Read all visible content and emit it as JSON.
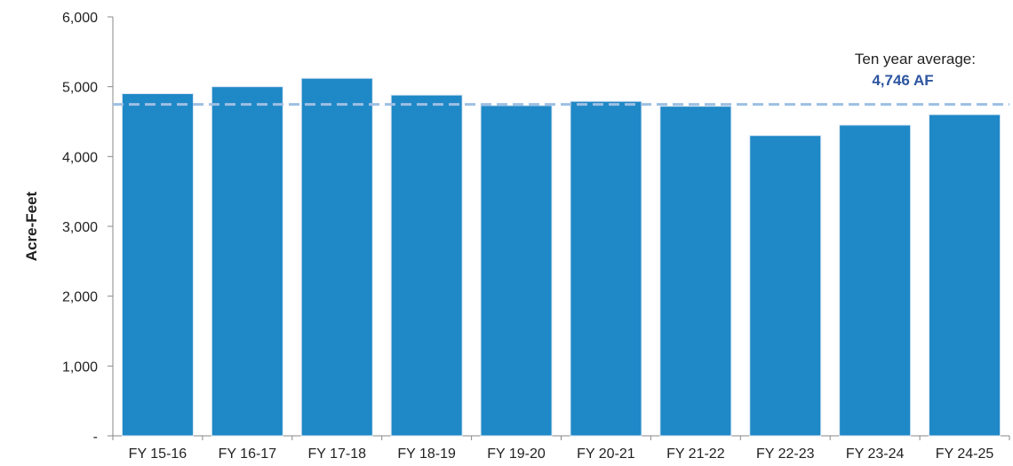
{
  "chart_data": {
    "type": "bar",
    "categories": [
      "FY 15-16",
      "FY 16-17",
      "FY 17-18",
      "FY 18-19",
      "FY 19-20",
      "FY 20-21",
      "FY 21-22",
      "FY 22-23",
      "FY 23-24",
      "FY 24-25"
    ],
    "values": [
      4900,
      5000,
      5120,
      4880,
      4730,
      4790,
      4720,
      4300,
      4450,
      4600
    ],
    "title": "",
    "xlabel": "",
    "ylabel": "Acre-Feet",
    "ylim": [
      0,
      6000
    ],
    "yticks": [
      0,
      1000,
      2000,
      3000,
      4000,
      5000,
      6000
    ],
    "ytick_labels": [
      "-",
      "1,000",
      "2,000",
      "3,000",
      "4,000",
      "5,000",
      "6,000"
    ],
    "grid": false,
    "legend": "none",
    "reference_line": {
      "value": 4746,
      "style": "dashed",
      "label": "Ten year average:",
      "value_label": "4,746 AF"
    },
    "colors": {
      "bar": "#1f88c6",
      "reference_line": "#9dbfe3",
      "value_label": "#2e56a0",
      "axis": "#888888"
    }
  }
}
